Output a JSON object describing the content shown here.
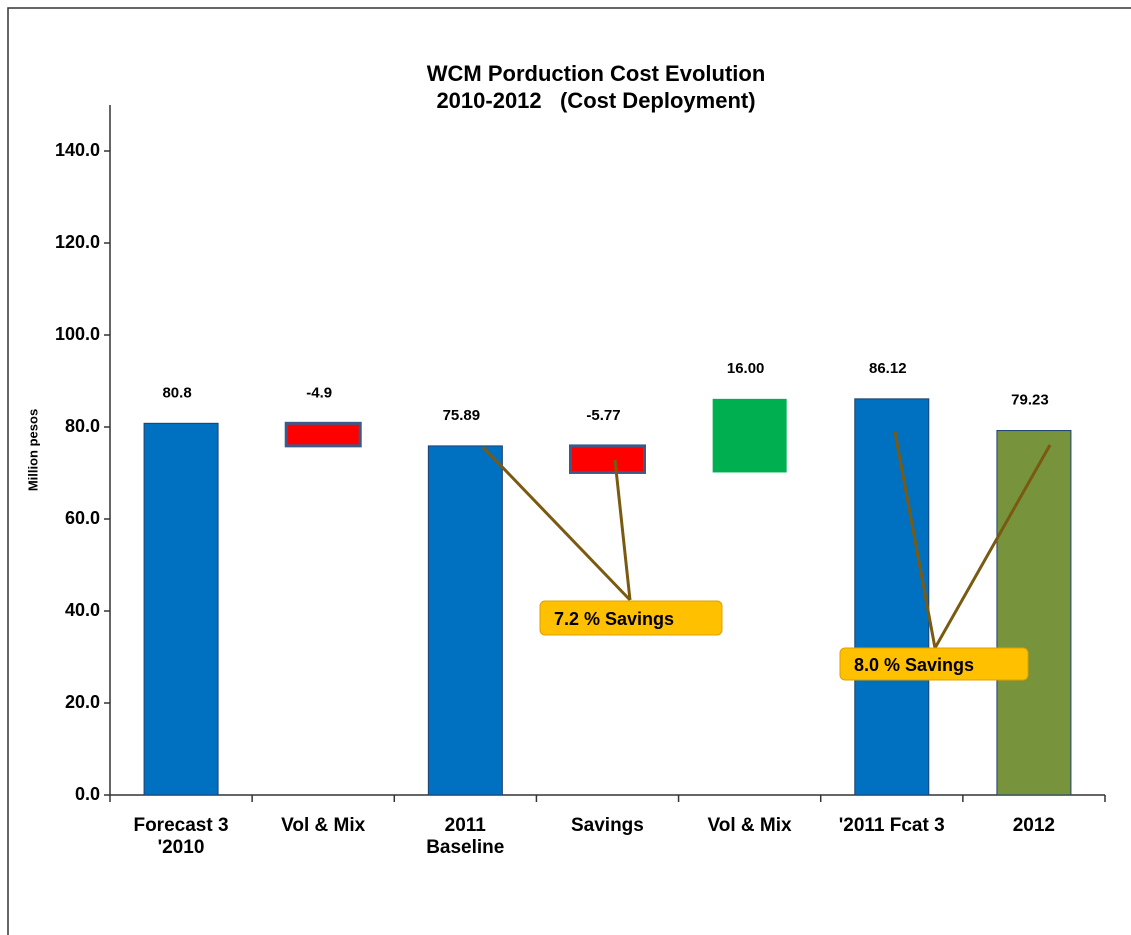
{
  "chart_data": {
    "type": "waterfall",
    "title": "WCM Porduction Cost Evolution",
    "subtitle": "2010-2012   (Cost Deployment)",
    "y_label": "Million pesos",
    "categories": [
      "Forecast 3\n'2010",
      "Vol & Mix",
      "2011\nBaseline",
      "Savings",
      "Vol & Mix",
      "'2011 Fcat 3",
      "2012"
    ],
    "kinds": [
      "total",
      "delta",
      "total",
      "delta",
      "delta",
      "total",
      "total"
    ],
    "values": [
      80.8,
      -4.9,
      75.89,
      -5.77,
      16,
      86.12,
      79.23
    ],
    "value_labels": [
      "80.8",
      "-4.9",
      "75.89",
      "-5.77",
      "16.00",
      "86.12",
      "79.23"
    ],
    "colors": [
      "#0070c0",
      "#ff0000",
      "#0070c0",
      "#ff0000",
      "#00b050",
      "#0070c0",
      "#77933c"
    ],
    "ylim": [
      0,
      150
    ],
    "yticks": [
      {
        "value": 0,
        "label": "0.0"
      },
      {
        "value": 20,
        "label": "20.0"
      },
      {
        "value": 40,
        "label": "40.0"
      },
      {
        "value": 60,
        "label": "60.0"
      },
      {
        "value": 80,
        "label": "80.0"
      },
      {
        "value": 100,
        "label": "100.0"
      },
      {
        "value": 120,
        "label": "120.0"
      },
      {
        "value": 140,
        "label": "140.0"
      }
    ],
    "annotations": [
      {
        "text": "7.2 % Savings"
      },
      {
        "text": "8.0 % Savings"
      }
    ]
  }
}
